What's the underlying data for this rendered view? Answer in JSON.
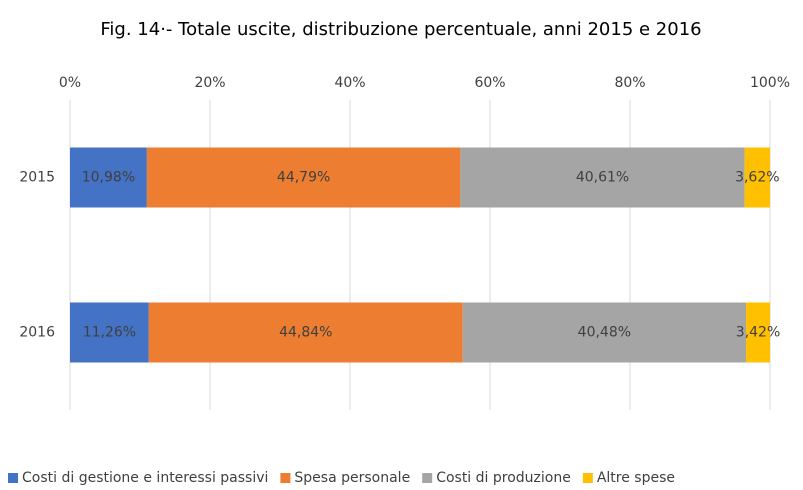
{
  "chart_data": {
    "type": "stacked-barh",
    "title": "Fig. 14·- Totale uscite, distribuzione percentuale, anni 2015 e 2016",
    "categories": [
      "2015",
      "2016"
    ],
    "series": [
      {
        "name": "Costi di gestione e interessi passivi",
        "color": "#4472c4",
        "values": [
          10.98,
          11.26
        ],
        "value_labels": [
          "10,98%",
          "11,26%"
        ]
      },
      {
        "name": "Spesa personale",
        "color": "#ed7d31",
        "values": [
          44.79,
          44.84
        ],
        "value_labels": [
          "44,79%",
          "44,84%"
        ]
      },
      {
        "name": "Costi di produzione",
        "color": "#a5a5a5",
        "values": [
          40.61,
          40.48
        ],
        "value_labels": [
          "40,61%",
          "40,48%"
        ]
      },
      {
        "name": "Altre spese",
        "color": "#ffc000",
        "values": [
          3.62,
          3.42
        ],
        "value_labels": [
          "3,62%",
          "3,42%"
        ]
      }
    ],
    "xlim": [
      0,
      100
    ],
    "xticks": [
      {
        "value": 0,
        "label": "0%"
      },
      {
        "value": 20,
        "label": "20%"
      },
      {
        "value": 40,
        "label": "40%"
      },
      {
        "value": 60,
        "label": "60%"
      },
      {
        "value": 80,
        "label": "80%"
      },
      {
        "value": 100,
        "label": "100%"
      }
    ],
    "grid": true,
    "legend": "bottom"
  }
}
